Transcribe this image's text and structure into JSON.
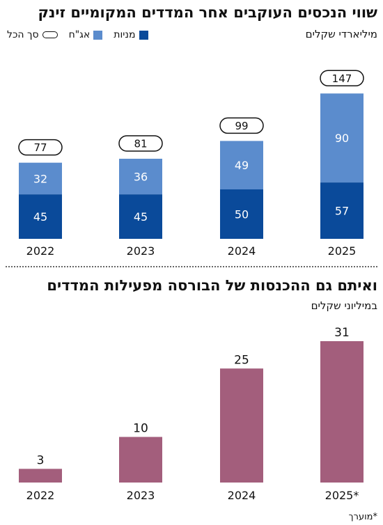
{
  "chart1": {
    "title": "שווי הנכסים העוקבים אחר המדדים המקומיים זינק",
    "unit": "מיליארדי שקלים",
    "legend": {
      "stocks": "מניות",
      "bonds": "אג\"ח",
      "total": "סך הכל"
    },
    "colors": {
      "stocks": "#0a4a9a",
      "bonds": "#5b8ccd"
    }
  },
  "chart2": {
    "title": "ואיתם גם ההכנסות של הבורסה מפעילות המדדים",
    "unit": "במיליוני שקלים",
    "colors": {
      "bar": "#a35e7c"
    }
  },
  "footnote": "*מוערך",
  "chart_data": [
    {
      "type": "bar",
      "stacked": true,
      "title": "שווי הנכסים העוקבים אחר המדדים המקומיים זינק",
      "ylabel": "מיליארדי שקלים",
      "categories": [
        "2022",
        "2023",
        "2024",
        "2025"
      ],
      "series": [
        {
          "name": "מניות",
          "values": [
            45,
            45,
            50,
            57
          ]
        },
        {
          "name": "אג\"ח",
          "values": [
            32,
            36,
            49,
            90
          ]
        }
      ],
      "totals": [
        77,
        81,
        99,
        147
      ],
      "ylim": [
        0,
        160
      ],
      "grid": false,
      "legend": "top-left"
    },
    {
      "type": "bar",
      "title": "ואיתם גם ההכנסות של הבורסה מפעילות המדדים",
      "ylabel": "במיליוני שקלים",
      "categories": [
        "2022",
        "2023",
        "2024",
        "2025*"
      ],
      "values": [
        3,
        10,
        25,
        31
      ],
      "ylim": [
        0,
        34
      ],
      "grid": false
    }
  ]
}
